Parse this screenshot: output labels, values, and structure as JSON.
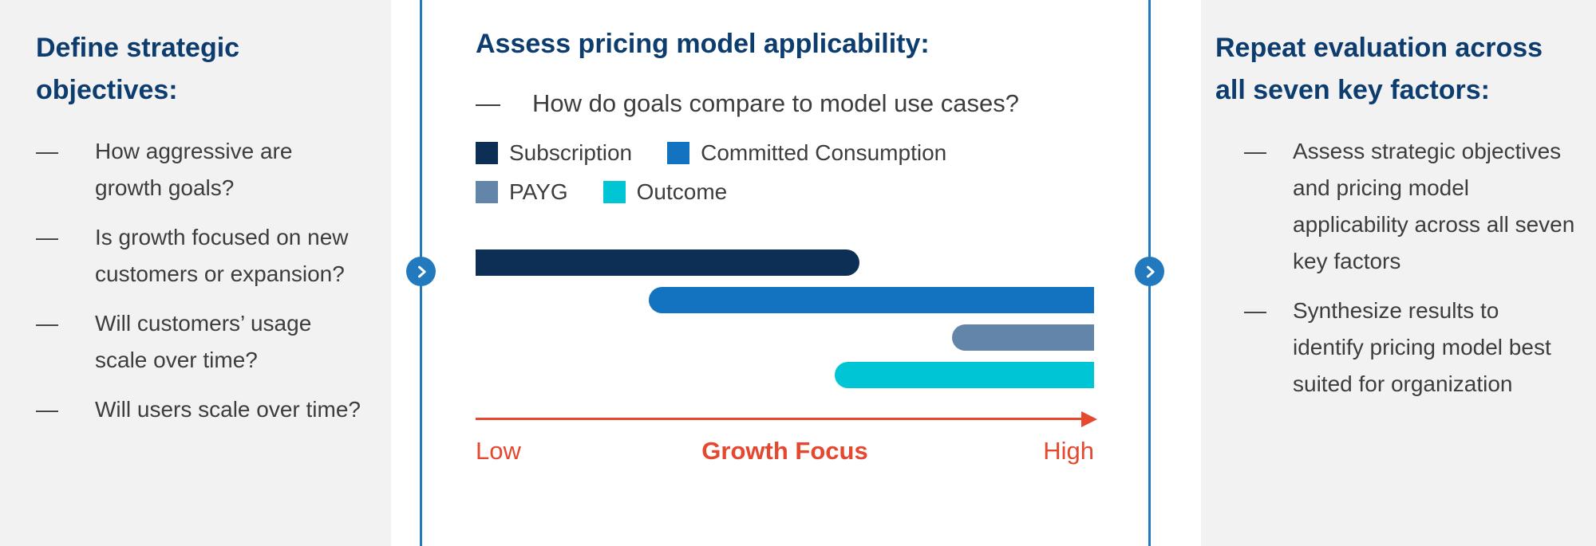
{
  "ui": {
    "dash": "—"
  },
  "colors": {
    "heading": "#0d3c6e",
    "body_text": "#3d3d3d",
    "panel_bg": "#f2f2f2",
    "divider": "#2379bd",
    "axis": "#e5472f"
  },
  "left_panel": {
    "title": "Define strategic objectives:",
    "items": [
      "How aggressive are growth goals?",
      "Is growth focused on new customers or expansion?",
      "Will customers’ usage scale over time?",
      "Will users scale over time?"
    ]
  },
  "middle_panel": {
    "title": "Assess pricing model applicability:",
    "bullet": "How do goals compare to model use cases?"
  },
  "right_panel": {
    "title": "Repeat evaluation across all seven key factors:",
    "items": [
      "Assess strategic objectives and pricing model applicability across all seven key factors",
      "Synthesize results to identify pricing model best suited for organization"
    ]
  },
  "chart_data": {
    "type": "bar",
    "orientation": "horizontal-range",
    "title": "",
    "xlabel": "Growth Focus",
    "axis": {
      "label": "Growth Focus",
      "min_label": "Low",
      "max_label": "High",
      "range": [
        0,
        100
      ],
      "color": "#e5472f"
    },
    "series": [
      {
        "name": "Subscription",
        "start": 0,
        "end": 62,
        "color": "#0e2f55"
      },
      {
        "name": "Committed Consumption",
        "start": 28,
        "end": 100,
        "color": "#1373c0"
      },
      {
        "name": "PAYG",
        "start": 77,
        "end": 100,
        "color": "#6285a9"
      },
      {
        "name": "Outcome",
        "start": 58,
        "end": 100,
        "color": "#00c5d5"
      }
    ],
    "legend_rows": [
      [
        "Subscription",
        "Committed Consumption"
      ],
      [
        "PAYG",
        "Outcome"
      ]
    ],
    "grid": false,
    "legend_position": "top"
  }
}
